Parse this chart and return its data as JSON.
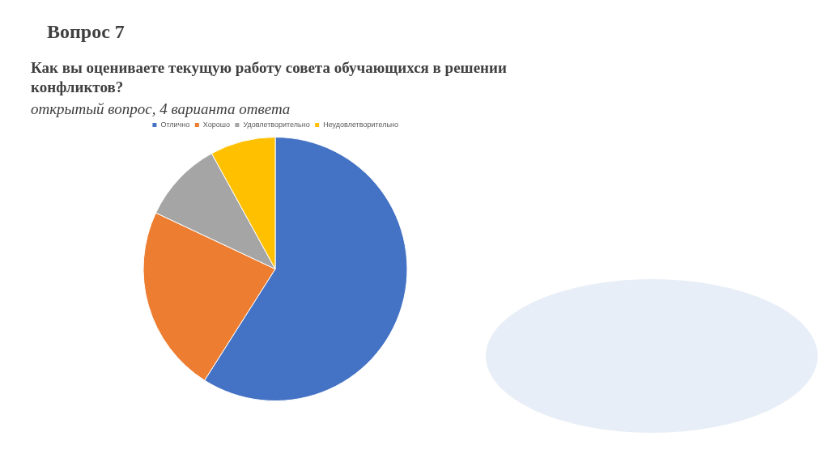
{
  "chart_data": {
    "type": "pie",
    "title": "Вопрос 7",
    "subtitle": "Как вы оцениваете текущую работу совета обучающихся в решении конфликтов?",
    "annotations": [
      "открытый вопрос, 4 варианта ответа"
    ],
    "categories": [
      "Отлично",
      "Хорошо",
      "Удовлетворительно",
      "Неудовлетворительно"
    ],
    "values": [
      59,
      23,
      10,
      8
    ],
    "colors": [
      "#4472c4",
      "#ed7d31",
      "#a5a5a5",
      "#ffc000"
    ],
    "legend": "top"
  }
}
